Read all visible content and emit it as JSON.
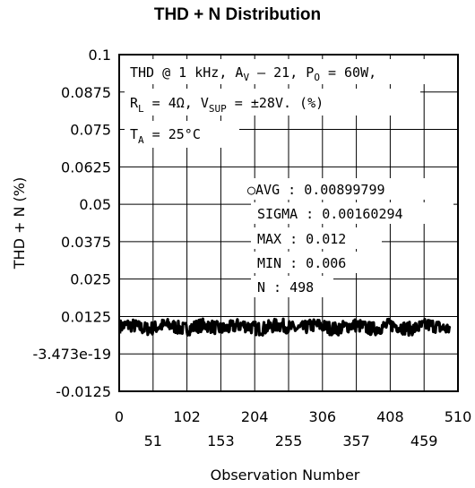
{
  "chart_data": {
    "type": "line",
    "title": "THD + N Distribution",
    "xlabel": "Observation Number",
    "ylabel": "THD + N (%)",
    "xlim": [
      0,
      510
    ],
    "ylim": [
      -0.0125,
      0.1
    ],
    "x_ticks_upper": [
      "0",
      "102",
      "204",
      "306",
      "408",
      "510"
    ],
    "x_ticks_lower": [
      "51",
      "153",
      "255",
      "357",
      "459"
    ],
    "y_ticks": [
      "0.1",
      "0.0875",
      "0.075",
      "0.0625",
      "0.05",
      "0.0375",
      "0.025",
      "0.0125",
      "-3.473e-19",
      "-0.0125"
    ],
    "grid": true,
    "conditions": {
      "line1": "THD @ 1 kHz, A",
      "line1_sub": "V",
      "line1_rest": " – 21, P",
      "line1_sub2": "O",
      "line1_end": " = 60W,",
      "line2": "R",
      "line2_sub": "L",
      "line2_rest": " = 4Ω, V",
      "line2_sub2": "SUP",
      "line2_end": " = ±28V. (%)",
      "line3": "T",
      "line3_sub": "A",
      "line3_end": " = 25°C"
    },
    "stats": {
      "avg": "○AVG : 0.00899799",
      "sigma": "SIGMA : 0.00160294",
      "max": "MAX : 0.012",
      "min": "MIN : 0.006",
      "n": "N : 498"
    },
    "series": [
      {
        "values": []
      }
    ]
  }
}
